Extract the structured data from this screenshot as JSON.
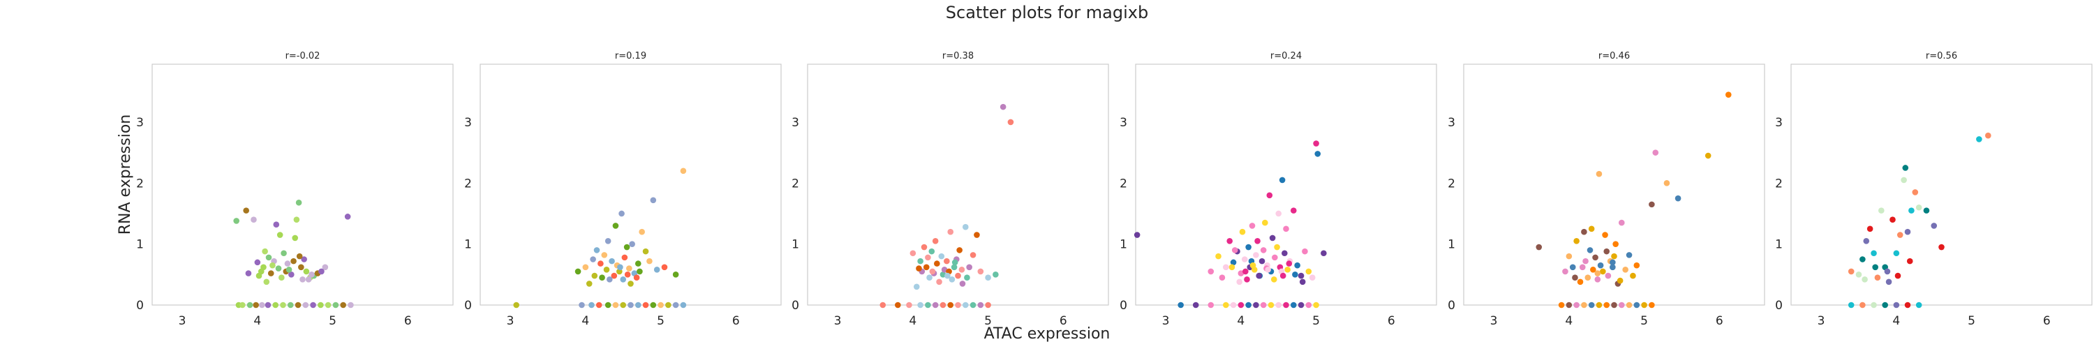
{
  "figure": {
    "title": "Scatter plots for magixb",
    "xlabel": "ATAC expression",
    "ylabel": "RNA expression"
  },
  "palette": [
    "#7fc97f",
    "#e7298a",
    "#1b9e77",
    "#d95f02",
    "#7570b3",
    "#66a61e",
    "#e6ab02",
    "#a6761d",
    "#1f78b4",
    "#33a02c",
    "#fb9a99",
    "#e31a1c",
    "#fdbf6f",
    "#ff7f00",
    "#cab2d6",
    "#6a3d9a",
    "#b2df8a",
    "#a6cee3",
    "#17becf",
    "#bcbd22",
    "#8c564b",
    "#9467bd",
    "#f781bf",
    "#999999",
    "#66c2a5",
    "#fc8d62",
    "#8da0cb",
    "#e78ac3",
    "#a6d854",
    "#ffd92f",
    "#d9d9d9",
    "#bc80bd",
    "#ccebc5",
    "#80b1d3",
    "#fdb462",
    "#b3de69",
    "#fccde5",
    "#bebada",
    "#fb8072",
    "#008080",
    "#ff6347",
    "#4682b4"
  ],
  "chart_data": [
    {
      "type": "scatter",
      "title": "r=-0.02",
      "xlim": [
        2.6,
        6.6
      ],
      "ylim": [
        0,
        3.95
      ],
      "xticks": [
        3,
        4,
        5,
        6
      ],
      "yticks": [
        0,
        1,
        2,
        3
      ],
      "grid": false,
      "x": [
        3.72,
        3.85,
        3.95,
        4.0,
        4.08,
        4.1,
        4.15,
        4.18,
        4.22,
        4.25,
        4.3,
        4.32,
        4.35,
        4.38,
        4.4,
        4.45,
        4.5,
        4.52,
        4.55,
        4.58,
        4.6,
        4.62,
        4.65,
        4.7,
        4.75,
        4.8,
        4.9,
        5.2,
        4.05,
        4.12,
        4.28,
        4.48,
        4.68,
        3.88,
        4.02,
        4.2,
        4.42,
        4.56,
        4.72,
        4.85,
        3.75,
        3.8,
        3.9,
        3.98,
        4.06,
        4.14,
        4.24,
        4.34,
        4.44,
        4.54,
        4.64,
        4.74,
        4.84,
        4.94,
        5.04,
        5.14,
        5.24
      ],
      "y": [
        1.38,
        1.55,
        1.4,
        0.7,
        0.62,
        0.88,
        0.78,
        0.52,
        0.72,
        1.32,
        1.15,
        0.45,
        0.85,
        0.55,
        0.68,
        0.5,
        1.1,
        1.4,
        1.68,
        0.62,
        0.42,
        0.75,
        0.55,
        0.45,
        0.48,
        0.52,
        0.62,
        1.45,
        0.55,
        0.38,
        0.6,
        0.72,
        0.42,
        0.52,
        0.48,
        0.65,
        0.58,
        0.8,
        0.5,
        0.55,
        0,
        0,
        0,
        0,
        0,
        0,
        0,
        0,
        0,
        0,
        0,
        0,
        0,
        0,
        0,
        0,
        0
      ]
    },
    {
      "type": "scatter",
      "title": "r=0.19",
      "xlim": [
        2.6,
        6.6
      ],
      "ylim": [
        0,
        3.95
      ],
      "xticks": [
        3,
        4,
        5,
        6
      ],
      "yticks": [
        0,
        1,
        2,
        3
      ],
      "grid": false,
      "x": [
        3.9,
        4.0,
        4.05,
        4.1,
        4.15,
        4.2,
        4.22,
        4.25,
        4.28,
        4.3,
        4.35,
        4.38,
        4.4,
        4.42,
        4.45,
        4.48,
        4.5,
        4.52,
        4.55,
        4.58,
        4.6,
        4.62,
        4.65,
        4.68,
        4.7,
        4.75,
        4.8,
        4.9,
        4.95,
        5.05,
        5.2,
        5.3,
        4.12,
        4.32,
        4.46,
        4.56,
        4.72,
        4.85,
        3.08,
        3.95,
        4.08,
        4.18,
        4.3,
        4.4,
        4.5,
        4.6,
        4.7,
        4.8,
        4.9,
        5.0,
        5.1,
        5.2,
        5.3
      ],
      "y": [
        0.55,
        0.62,
        0.35,
        0.75,
        0.9,
        0.68,
        0.45,
        0.82,
        0.58,
        1.05,
        0.72,
        0.48,
        1.3,
        0.65,
        0.55,
        1.5,
        0.42,
        0.78,
        0.95,
        0.6,
        0.35,
        1.0,
        0.52,
        0.45,
        0.68,
        1.2,
        0.88,
        1.72,
        0.58,
        0.62,
        0.5,
        2.2,
        0.48,
        0.42,
        0.62,
        0.5,
        0.55,
        0.72,
        0,
        0,
        0,
        0,
        0,
        0,
        0,
        0,
        0,
        0,
        0,
        0,
        0,
        0,
        0
      ]
    },
    {
      "type": "scatter",
      "title": "r=0.38",
      "xlim": [
        2.6,
        6.6
      ],
      "ylim": [
        0,
        3.95
      ],
      "xticks": [
        3,
        4,
        5,
        6
      ],
      "yticks": [
        0,
        1,
        2,
        3
      ],
      "grid": false,
      "x": [
        4.0,
        4.05,
        4.1,
        4.12,
        4.15,
        4.18,
        4.2,
        4.22,
        4.25,
        4.28,
        4.3,
        4.32,
        4.35,
        4.38,
        4.4,
        4.42,
        4.45,
        4.48,
        4.5,
        4.52,
        4.55,
        4.58,
        4.6,
        4.62,
        4.65,
        4.7,
        4.72,
        4.75,
        4.8,
        4.85,
        4.9,
        5.0,
        5.1,
        5.2,
        5.3,
        4.08,
        4.26,
        4.46,
        4.56,
        4.66,
        3.6,
        3.8,
        3.95,
        4.1,
        4.2,
        4.3,
        4.4,
        4.5,
        4.6,
        4.7,
        4.8,
        4.9,
        5.0
      ],
      "y": [
        0.85,
        0.3,
        0.72,
        0.55,
        0.95,
        0.62,
        0.78,
        0.45,
        0.88,
        0.52,
        1.05,
        0.68,
        0.38,
        0.8,
        0.5,
        0.58,
        0.72,
        0.55,
        1.2,
        0.42,
        0.62,
        0.75,
        0.48,
        0.9,
        0.58,
        1.28,
        0.45,
        0.62,
        0.82,
        1.15,
        0.55,
        0.45,
        0.5,
        3.25,
        3.0,
        0.6,
        0.55,
        0.48,
        0.7,
        0.35,
        0,
        0,
        0,
        0,
        0,
        0,
        0,
        0,
        0,
        0,
        0,
        0,
        0
      ]
    },
    {
      "type": "scatter",
      "title": "r=0.24",
      "xlim": [
        2.6,
        6.6
      ],
      "ylim": [
        0,
        3.95
      ],
      "xticks": [
        3,
        4,
        5,
        6
      ],
      "yticks": [
        0,
        1,
        2,
        3
      ],
      "grid": false,
      "x": [
        2.62,
        3.6,
        3.7,
        3.8,
        3.85,
        3.9,
        3.95,
        4.0,
        4.02,
        4.05,
        4.08,
        4.1,
        4.12,
        4.15,
        4.18,
        4.2,
        4.22,
        4.25,
        4.28,
        4.3,
        4.32,
        4.35,
        4.38,
        4.4,
        4.42,
        4.45,
        4.48,
        4.5,
        4.52,
        4.55,
        4.58,
        4.6,
        4.62,
        4.65,
        4.7,
        4.75,
        4.8,
        4.85,
        4.9,
        4.95,
        5.0,
        5.02,
        5.1,
        3.75,
        3.88,
        3.98,
        4.06,
        4.14,
        4.24,
        4.34,
        4.44,
        4.54,
        4.64,
        4.72,
        4.82,
        3.92,
        4.16,
        4.36,
        4.56,
        3.2,
        3.4,
        3.6,
        3.8,
        3.9,
        4.0,
        4.1,
        4.2,
        4.3,
        4.4,
        4.5,
        4.6,
        4.7,
        4.8,
        4.9,
        5.0
      ],
      "y": [
        1.15,
        0.55,
        0.8,
        0.62,
        1.05,
        0.7,
        0.88,
        0.52,
        1.2,
        0.75,
        0.42,
        0.95,
        0.62,
        1.3,
        0.58,
        0.82,
        1.05,
        0.48,
        0.72,
        0.9,
        1.35,
        0.65,
        1.8,
        0.55,
        1.1,
        0.78,
        0.95,
        1.5,
        0.62,
        2.05,
        0.85,
        1.25,
        0.58,
        0.72,
        1.55,
        0.65,
        0.48,
        0.88,
        0.55,
        0.45,
        2.65,
        2.48,
        0.85,
        0.45,
        0.62,
        0.38,
        0.55,
        0.72,
        0.48,
        0.6,
        0.42,
        0.55,
        0.68,
        0.5,
        0.38,
        0.9,
        0.65,
        0.58,
        0.48,
        0,
        0,
        0,
        0,
        0,
        0,
        0,
        0,
        0,
        0,
        0,
        0,
        0,
        0,
        0,
        0
      ]
    },
    {
      "type": "scatter",
      "title": "r=0.46",
      "xlim": [
        2.6,
        6.6
      ],
      "ylim": [
        0,
        3.95
      ],
      "xticks": [
        3,
        4,
        5,
        6
      ],
      "yticks": [
        0,
        1,
        2,
        3
      ],
      "grid": false,
      "x": [
        3.6,
        3.95,
        4.0,
        4.05,
        4.1,
        4.15,
        4.2,
        4.22,
        4.25,
        4.28,
        4.3,
        4.32,
        4.35,
        4.38,
        4.4,
        4.42,
        4.45,
        4.48,
        4.5,
        4.52,
        4.55,
        4.58,
        4.6,
        4.62,
        4.65,
        4.7,
        4.75,
        4.8,
        4.85,
        4.9,
        5.1,
        5.15,
        5.3,
        5.45,
        5.85,
        6.12,
        4.08,
        4.18,
        4.38,
        4.58,
        4.68,
        3.9,
        4.0,
        4.1,
        4.2,
        4.3,
        4.4,
        4.5,
        4.6,
        4.7,
        4.8,
        4.9,
        5.0,
        5.1
      ],
      "y": [
        0.95,
        0.55,
        0.8,
        0.62,
        1.05,
        0.38,
        1.2,
        0.72,
        0.45,
        0.9,
        1.25,
        0.58,
        0.78,
        0.42,
        2.15,
        0.65,
        0.55,
        1.15,
        0.88,
        0.48,
        0.72,
        0.62,
        0.8,
        1.0,
        0.35,
        1.35,
        0.58,
        0.82,
        0.48,
        0.65,
        1.65,
        2.5,
        2.0,
        1.75,
        2.45,
        3.45,
        0.45,
        0.62,
        0.52,
        0.7,
        0.4,
        0,
        0,
        0,
        0,
        0,
        0,
        0,
        0,
        0,
        0,
        0,
        0,
        0
      ]
    },
    {
      "type": "scatter",
      "title": "r=0.56",
      "xlim": [
        2.6,
        6.6
      ],
      "ylim": [
        0,
        3.95
      ],
      "xticks": [
        3,
        4,
        5,
        6
      ],
      "yticks": [
        0,
        1,
        2,
        3
      ],
      "grid": false,
      "x": [
        3.4,
        3.5,
        3.55,
        3.6,
        3.65,
        3.7,
        3.75,
        3.8,
        3.85,
        3.9,
        3.95,
        4.0,
        4.05,
        4.1,
        4.12,
        4.15,
        4.18,
        4.2,
        4.25,
        4.3,
        4.4,
        4.5,
        4.6,
        5.1,
        5.22,
        3.58,
        3.72,
        3.88,
        4.02,
        3.4,
        3.55,
        3.7,
        3.85,
        4.0,
        4.15,
        4.3
      ],
      "y": [
        0.55,
        0.5,
        0.75,
        1.05,
        1.25,
        0.85,
        0.45,
        1.55,
        0.62,
        0.38,
        1.4,
        0.85,
        1.15,
        2.05,
        2.25,
        1.2,
        0.72,
        1.55,
        1.85,
        1.6,
        1.55,
        1.3,
        0.95,
        2.72,
        2.78,
        0.42,
        0.62,
        0.55,
        0.48,
        0,
        0,
        0,
        0,
        0,
        0,
        0
      ]
    }
  ]
}
